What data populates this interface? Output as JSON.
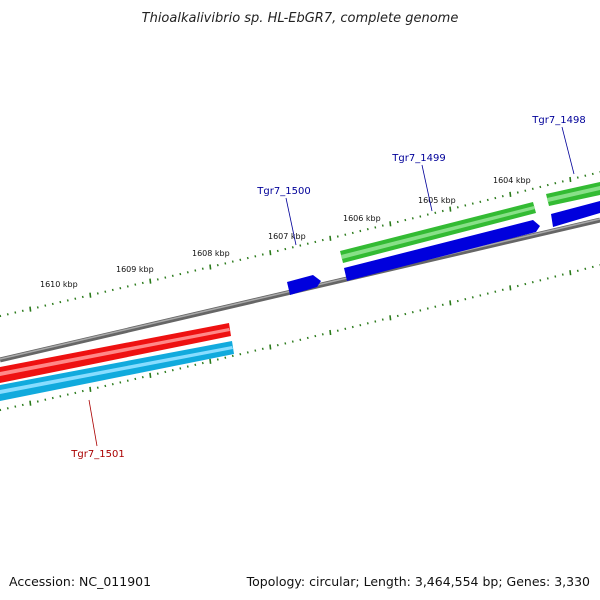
{
  "title": "Thioalkalivibrio sp. HL-EbGR7, complete genome",
  "footer": {
    "accession": "Accession: NC_011901",
    "summary": "Topology: circular; Length: 3,464,554 bp; Genes: 3,330"
  },
  "colors": {
    "backbone": "#888888",
    "tick": "#2a7a1a",
    "forward_cds": "#33bb33",
    "forward_gene": "#0000dd",
    "reverse_cds": "#ee1111",
    "reverse_gene": "#11aadd",
    "forward_label": "#000099",
    "reverse_label": "#aa0000"
  },
  "ticks": [
    {
      "label": "1610 kbp"
    },
    {
      "label": "1609 kbp"
    },
    {
      "label": "1608 kbp"
    },
    {
      "label": "1607 kbp"
    },
    {
      "label": "1606 kbp"
    },
    {
      "label": "1605 kbp"
    },
    {
      "label": "1604 kbp"
    }
  ],
  "genes": [
    {
      "name": "Tgr7_1498",
      "strand": "forward"
    },
    {
      "name": "Tgr7_1499",
      "strand": "forward"
    },
    {
      "name": "Tgr7_1500",
      "strand": "forward"
    },
    {
      "name": "Tgr7_1501",
      "strand": "reverse"
    }
  ]
}
